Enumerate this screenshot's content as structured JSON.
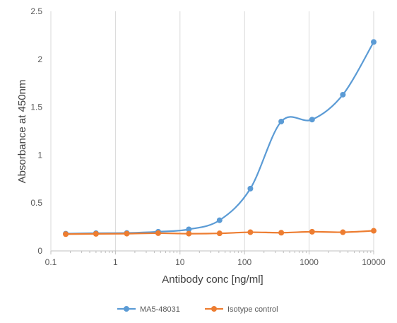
{
  "chart_data": {
    "type": "line",
    "title": "",
    "xlabel": "Antibody conc [ng/ml]",
    "ylabel": "Absorbance at 450nm",
    "xscale": "log",
    "xlim": [
      0.1,
      10000
    ],
    "ylim": [
      0,
      2.5
    ],
    "x_ticks": [
      "0.1",
      "1",
      "10",
      "100",
      "1000",
      "10000"
    ],
    "y_ticks": [
      "0",
      "0.5",
      "1",
      "1.5",
      "2",
      "2.5"
    ],
    "grid": "vertical major gridlines",
    "legend_position": "bottom",
    "smoothed": true,
    "series": [
      {
        "name": "MA5-48031",
        "color": "#5B9BD5",
        "x": [
          0.17,
          0.5,
          1.5,
          4.6,
          13.7,
          41,
          123,
          370,
          1111,
          3333,
          10000
        ],
        "values": [
          0.18,
          0.185,
          0.187,
          0.2,
          0.225,
          0.32,
          0.65,
          1.35,
          1.37,
          1.63,
          2.18
        ]
      },
      {
        "name": "Isotype control",
        "color": "#ED7D31",
        "x": [
          0.17,
          0.5,
          1.5,
          4.6,
          13.7,
          41,
          123,
          370,
          1111,
          3333,
          10000
        ],
        "values": [
          0.175,
          0.178,
          0.18,
          0.185,
          0.18,
          0.183,
          0.195,
          0.19,
          0.2,
          0.195,
          0.21
        ]
      }
    ]
  }
}
